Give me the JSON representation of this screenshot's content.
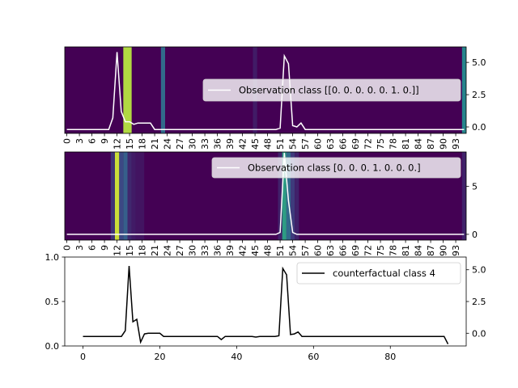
{
  "chart_data": [
    {
      "type": "heatmap",
      "colormap": "viridis",
      "x_tick_labels": [
        "0",
        "3",
        "6",
        "9",
        "12",
        "15",
        "18",
        "21",
        "24",
        "27",
        "30",
        "33",
        "36",
        "39",
        "42",
        "45",
        "48",
        "51",
        "54",
        "57",
        "60",
        "63",
        "66",
        "69",
        "72",
        "75",
        "78",
        "81",
        "84",
        "87",
        "90",
        "93"
      ],
      "x_tick_rotation": 90,
      "xlim": [
        0,
        96
      ],
      "right_axis": {
        "ylim": [
          -0.5,
          6.2
        ],
        "ticks": [
          0.0,
          2.5,
          5.0
        ],
        "tick_labels": [
          "0.0",
          "2.5",
          "5.0"
        ]
      },
      "heat_cells": [
        {
          "index": 23,
          "intensity": 0.35
        },
        {
          "index": 45,
          "intensity": 0.08
        },
        {
          "index": 95,
          "intensity": 0.45
        }
      ],
      "highlight_band": {
        "start": 14,
        "end": 16,
        "intensity": 0.88
      },
      "series": [
        {
          "name": "Observation class [[0. 0. 0. 0. 0. 1. 0.]]",
          "color": "#ffffff",
          "values": [
            -0.2,
            -0.2,
            -0.2,
            -0.2,
            -0.2,
            -0.2,
            -0.2,
            -0.2,
            -0.2,
            -0.2,
            -0.2,
            0.7,
            5.8,
            1.2,
            0.4,
            0.4,
            0.2,
            0.3,
            0.3,
            0.3,
            0.3,
            -0.2,
            -0.2,
            -0.2,
            -0.2,
            -0.2,
            -0.2,
            -0.2,
            -0.2,
            -0.2,
            -0.2,
            -0.2,
            -0.2,
            -0.2,
            -0.2,
            -0.2,
            -0.2,
            -0.2,
            -0.2,
            -0.2,
            -0.2,
            -0.2,
            -0.2,
            -0.2,
            -0.2,
            -0.2,
            -0.2,
            -0.2,
            -0.2,
            -0.2,
            -0.2,
            -0.1,
            5.5,
            4.9,
            0.1,
            0.0,
            0.3,
            -0.2,
            -0.2,
            -0.2,
            -0.2,
            -0.2,
            -0.2,
            -0.2,
            -0.2,
            -0.2,
            -0.2,
            -0.2,
            -0.2,
            -0.2,
            -0.2,
            -0.2,
            -0.2,
            -0.2,
            -0.2,
            -0.2,
            -0.2,
            -0.2,
            -0.2,
            -0.2,
            -0.2,
            -0.2,
            -0.2,
            -0.2,
            -0.2,
            -0.2,
            -0.2,
            -0.2,
            -0.2,
            -0.2,
            -0.2,
            -0.2,
            -0.2,
            -0.2,
            -0.2,
            -0.2
          ]
        }
      ],
      "legend": {
        "placement": "right",
        "label": "Observation class [[0. 0. 0. 0. 0. 1. 0.]]"
      }
    },
    {
      "type": "heatmap",
      "colormap": "viridis",
      "x_tick_labels": [
        "0",
        "3",
        "6",
        "9",
        "12",
        "15",
        "18",
        "21",
        "24",
        "27",
        "30",
        "33",
        "36",
        "39",
        "42",
        "45",
        "48",
        "51",
        "54",
        "57",
        "60",
        "63",
        "66",
        "69",
        "72",
        "75",
        "78",
        "81",
        "84",
        "87",
        "90",
        "93"
      ],
      "x_tick_rotation": 90,
      "xlim": [
        0,
        96
      ],
      "right_axis": {
        "ylim": [
          -0.6,
          8.6
        ],
        "ticks": [
          0,
          5
        ],
        "tick_labels": [
          "0",
          "5"
        ]
      },
      "heat_cells": [
        {
          "index": 11,
          "intensity": 0.15
        },
        {
          "index": 13,
          "intensity": 0.22
        },
        {
          "index": 14,
          "intensity": 0.3
        },
        {
          "index": 15,
          "intensity": 0.12
        },
        {
          "index": 16,
          "intensity": 0.08
        },
        {
          "index": 17,
          "intensity": 0.06
        },
        {
          "index": 18,
          "intensity": 0.06
        },
        {
          "index": 51,
          "intensity": 0.1
        },
        {
          "index": 53,
          "intensity": 0.35
        },
        {
          "index": 54,
          "intensity": 0.18
        },
        {
          "index": 55,
          "intensity": 0.1
        },
        {
          "index": 95,
          "intensity": 0.1
        }
      ],
      "highlight_band": {
        "start": 12,
        "end": 13,
        "intensity": 0.92
      },
      "accent_band": {
        "start": 52,
        "end": 53,
        "intensity": 0.55
      },
      "series": [
        {
          "name": "Observation class [0. 0. 0. 1. 0. 0. 0.]",
          "color": "#ffffff",
          "values": [
            0,
            0,
            0,
            0,
            0,
            0,
            0,
            0,
            0,
            0,
            0,
            0,
            0,
            0,
            0,
            0,
            0,
            0,
            0,
            0,
            0,
            0,
            0,
            0,
            0,
            0,
            0,
            0,
            0,
            0,
            0,
            0,
            0,
            0,
            0,
            0,
            0,
            0,
            0,
            0,
            0,
            0,
            0,
            0,
            0,
            0,
            0,
            0,
            0,
            0,
            0,
            0.2,
            8.5,
            3.5,
            0.2,
            0,
            0,
            0,
            0,
            0,
            0,
            0,
            0,
            0,
            0,
            0,
            0,
            0,
            0,
            0,
            0,
            0,
            0,
            0,
            0,
            0,
            0,
            0,
            0,
            0,
            0,
            0,
            0,
            0,
            0,
            0,
            0,
            0,
            0,
            0,
            0,
            0,
            0,
            0,
            0,
            0
          ]
        }
      ],
      "legend": {
        "placement": "top-right",
        "label": "Observation class [0. 0. 0. 1. 0. 0. 0.]"
      }
    },
    {
      "type": "line",
      "x_ticks": [
        0,
        20,
        40,
        60,
        80
      ],
      "x_tick_labels": [
        "0",
        "20",
        "40",
        "60",
        "80"
      ],
      "xlim": [
        -4.75,
        99.75
      ],
      "left_axis": {
        "ylim": [
          0.0,
          1.0
        ],
        "ticks": [
          0.0,
          0.5,
          1.0
        ],
        "tick_labels": [
          "0.0",
          "0.5",
          "1.0"
        ]
      },
      "right_axis": {
        "ylim": [
          -1.0,
          6.0
        ],
        "ticks": [
          0.0,
          2.5,
          5.0
        ],
        "tick_labels": [
          "0.0",
          "2.5",
          "5.0"
        ]
      },
      "series": [
        {
          "name": "counterfactual class 4",
          "color": "#000000",
          "values": [
            -0.25,
            -0.25,
            -0.25,
            -0.25,
            -0.25,
            -0.25,
            -0.25,
            -0.25,
            -0.25,
            -0.25,
            -0.25,
            0.2,
            5.3,
            0.9,
            1.1,
            -0.7,
            -0.05,
            0.0,
            0.0,
            0.0,
            0.0,
            -0.25,
            -0.25,
            -0.25,
            -0.25,
            -0.25,
            -0.25,
            -0.25,
            -0.25,
            -0.25,
            -0.25,
            -0.25,
            -0.25,
            -0.25,
            -0.25,
            -0.25,
            -0.5,
            -0.25,
            -0.25,
            -0.25,
            -0.25,
            -0.25,
            -0.25,
            -0.25,
            -0.25,
            -0.3,
            -0.25,
            -0.25,
            -0.25,
            -0.25,
            -0.25,
            -0.2,
            5.1,
            4.6,
            -0.1,
            -0.05,
            0.1,
            -0.25,
            -0.25,
            -0.25,
            -0.25,
            -0.25,
            -0.25,
            -0.25,
            -0.25,
            -0.25,
            -0.25,
            -0.25,
            -0.25,
            -0.25,
            -0.25,
            -0.25,
            -0.25,
            -0.25,
            -0.25,
            -0.25,
            -0.25,
            -0.25,
            -0.25,
            -0.25,
            -0.25,
            -0.25,
            -0.25,
            -0.25,
            -0.25,
            -0.25,
            -0.25,
            -0.25,
            -0.25,
            -0.25,
            -0.25,
            -0.25,
            -0.25,
            -0.25,
            -0.25,
            -0.85
          ]
        }
      ],
      "legend": {
        "placement": "top-right",
        "label": "counterfactual class 4"
      }
    }
  ]
}
